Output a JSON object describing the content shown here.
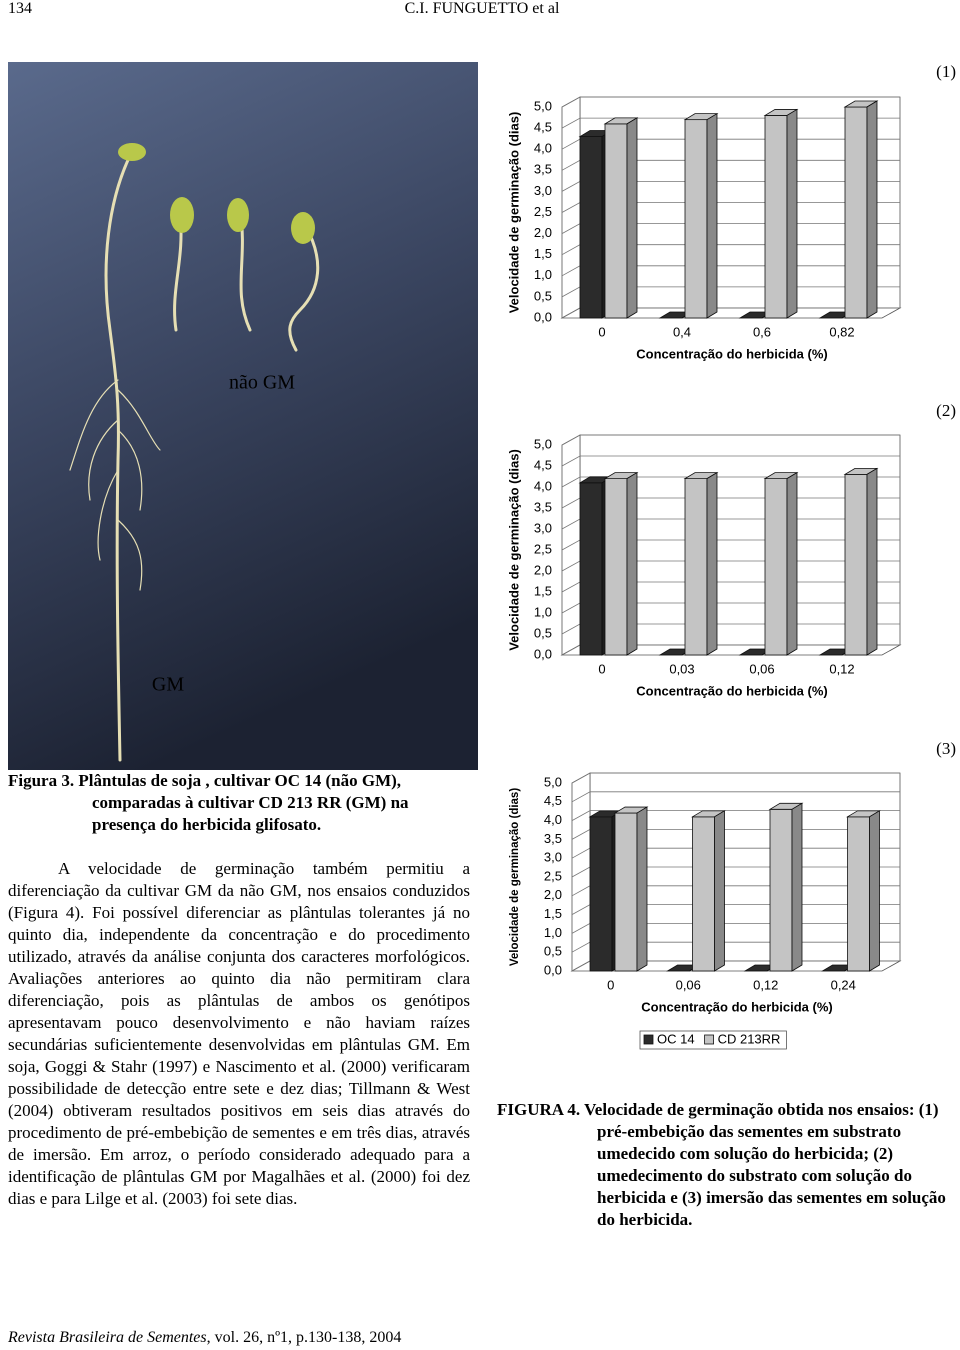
{
  "header": {
    "page": "134",
    "authors": "C.I. FUNGUETTO et al"
  },
  "photo": {
    "label_top": "não GM",
    "label_bottom": "GM"
  },
  "figure3_caption": {
    "label": "Figura 3.",
    "text": "Plântulas de soja , cultivar OC 14 (não GM), comparadas à cultivar CD 213 RR (GM) na presença do herbicida glifosato."
  },
  "body": [
    "A velocidade de germinação também permitiu a diferenciação da cultivar GM da não GM, nos ensaios conduzidos (Figura 4). Foi possível diferenciar as plântulas tolerantes já no quinto dia, independente da concentração e do procedimento utilizado, através da análise conjunta dos caracteres morfológicos. Avaliações anteriores ao quinto dia não permitiram clara diferenciação, pois as plântulas de ambos os genótipos apresentavam pouco desenvolvimento e não haviam raízes secundárias suficientemente desenvolvidas em plântulas GM. Em soja, Goggi & Stahr (1997) e Nascimento et al. (2000) verificaram possibilidade de detecção entre sete e dez dias; Tillmann & West (2004) obtiveram resultados positivos em seis dias através do procedimento de pré-embebição de sementes e em três dias, através de imersão. Em arroz, o período considerado adequado para a identificação de plântulas GM por Magalhães et al. (2000) foi dez dias e para Lilge et al. (2003) foi sete dias."
  ],
  "chart_data": [
    {
      "type": "bar",
      "panel": "(1)",
      "ylabel": "Velocidade de germinação (dias)",
      "xlabel": "Concentração do herbicida (%)",
      "categories": [
        "0",
        "0,4",
        "0,6",
        "0,82"
      ],
      "series": [
        {
          "name": "OC 14",
          "color": "#2b2b2b",
          "values": [
            4.3,
            0,
            0,
            0
          ]
        },
        {
          "name": "CD 213RR",
          "color": "#c4c4c4",
          "values": [
            4.6,
            4.7,
            4.8,
            5.0
          ]
        }
      ],
      "ylim": [
        0,
        5
      ],
      "yticks": [
        {
          "value": 0,
          "label": "0,0"
        },
        {
          "value": 0.5,
          "label": "0,5"
        },
        {
          "value": 1,
          "label": "1,0"
        },
        {
          "value": 1.5,
          "label": "1,5"
        },
        {
          "value": 2,
          "label": "2,0"
        },
        {
          "value": 2.5,
          "label": "2,5"
        },
        {
          "value": 3,
          "label": "3,0"
        },
        {
          "value": 3.5,
          "label": "3,5"
        },
        {
          "value": 4,
          "label": "4,0"
        },
        {
          "value": 4.5,
          "label": "4,5"
        },
        {
          "value": 5,
          "label": "5,0"
        }
      ],
      "grid": true,
      "legend": false
    },
    {
      "type": "bar",
      "panel": "(2)",
      "ylabel": "Velocidade de germinação (dias)",
      "xlabel": "Concentração do herbicida (%)",
      "categories": [
        "0",
        "0,03",
        "0,06",
        "0,12"
      ],
      "series": [
        {
          "name": "OC 14",
          "color": "#2b2b2b",
          "values": [
            4.1,
            0,
            0,
            0
          ]
        },
        {
          "name": "CD 213RR",
          "color": "#c4c4c4",
          "values": [
            4.2,
            4.2,
            4.2,
            4.3
          ]
        }
      ],
      "ylim": [
        0,
        5
      ],
      "yticks": [
        {
          "value": 0,
          "label": "0,0"
        },
        {
          "value": 0.5,
          "label": "0,5"
        },
        {
          "value": 1,
          "label": "1,0"
        },
        {
          "value": 1.5,
          "label": "1,5"
        },
        {
          "value": 2,
          "label": "2,0"
        },
        {
          "value": 2.5,
          "label": "2,5"
        },
        {
          "value": 3,
          "label": "3,0"
        },
        {
          "value": 3.5,
          "label": "3,5"
        },
        {
          "value": 4,
          "label": "4,0"
        },
        {
          "value": 4.5,
          "label": "4,5"
        },
        {
          "value": 5,
          "label": "5,0"
        }
      ],
      "grid": true,
      "legend": false
    },
    {
      "type": "bar",
      "panel": "(3)",
      "ylabel": "Velocidade de germinação (dias)",
      "xlabel": "Concentração do herbicida (%)",
      "categories": [
        "0",
        "0,06",
        "0,12",
        "0,24"
      ],
      "series": [
        {
          "name": "OC 14",
          "color": "#2b2b2b",
          "values": [
            4.1,
            0,
            0,
            0
          ]
        },
        {
          "name": "CD 213RR",
          "color": "#c4c4c4",
          "values": [
            4.2,
            4.1,
            4.3,
            4.1
          ]
        }
      ],
      "ylim": [
        0,
        5
      ],
      "yticks": [
        {
          "value": 0,
          "label": "0,0"
        },
        {
          "value": 0.5,
          "label": "0,5"
        },
        {
          "value": 1,
          "label": "1,0"
        },
        {
          "value": 1.5,
          "label": "1,5"
        },
        {
          "value": 2,
          "label": "2,0"
        },
        {
          "value": 2.5,
          "label": "2,5"
        },
        {
          "value": 3,
          "label": "3,0"
        },
        {
          "value": 3.5,
          "label": "3,5"
        },
        {
          "value": 4,
          "label": "4,0"
        },
        {
          "value": 4.5,
          "label": "4,5"
        },
        {
          "value": 5,
          "label": "5,0"
        }
      ],
      "grid": true,
      "legend": true
    }
  ],
  "figure4_caption": {
    "label": "FIGURA 4.",
    "text": "Velocidade de germinação obtida nos ensaios: (1) pré-embebição das sementes em substrato umedecido com solução do herbicida; (2) umedecimento do substrato com solução do herbicida e (3) imersão das sementes em solução do herbicida."
  },
  "footer": {
    "journal": "Revista Brasileira de Sementes",
    "issue": ", vol. 26, nº1, p.130-138, 2004"
  }
}
